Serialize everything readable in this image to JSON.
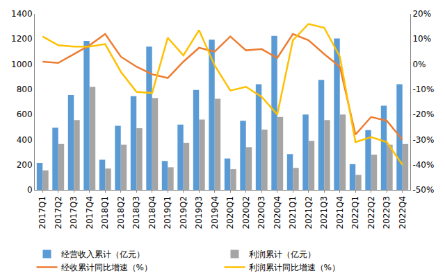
{
  "chart_data": {
    "type": "bar",
    "categories": [
      "2017Q1",
      "2017Q2",
      "2017Q3",
      "2017Q4",
      "2018Q1",
      "2018Q2",
      "2018Q3",
      "2018Q4",
      "2019Q1",
      "2019Q2",
      "2019Q3",
      "2019Q4",
      "2020Q1",
      "2020Q2",
      "2020Q3",
      "2020Q4",
      "2021Q1",
      "2021Q2",
      "2021Q3",
      "2021Q4",
      "2022Q1",
      "2022Q2",
      "2022Q3",
      "2022Q4"
    ],
    "series": [
      {
        "name": "经营收入累计（亿元）",
        "type": "bar",
        "color": "#5B9BD5",
        "values": [
          215,
          495,
          755,
          1185,
          240,
          510,
          745,
          1140,
          230,
          520,
          795,
          1195,
          250,
          550,
          840,
          1225,
          285,
          600,
          875,
          1205,
          205,
          475,
          670,
          840
        ]
      },
      {
        "name": "利润累计（亿元）",
        "type": "bar",
        "color": "#A5A5A5",
        "values": [
          155,
          365,
          555,
          820,
          170,
          360,
          490,
          730,
          180,
          375,
          560,
          725,
          165,
          340,
          480,
          580,
          175,
          390,
          555,
          600,
          120,
          280,
          360,
          365
        ]
      },
      {
        "name": "经收累计同比增速（%）",
        "type": "line",
        "axis": "y2",
        "color": "#ED7D31",
        "values": [
          1,
          0.5,
          4,
          7.5,
          12,
          3,
          -1,
          -4,
          -5.5,
          1,
          6.5,
          5,
          11,
          5.5,
          6,
          2.5,
          12,
          9.5,
          4,
          -1,
          -28,
          -21,
          -22.5,
          -30
        ]
      },
      {
        "name": "利润累计同比增速（%）",
        "type": "line",
        "axis": "y2",
        "color": "#FFC000",
        "values": [
          11,
          7.5,
          7,
          7,
          8,
          -3,
          -11,
          -11.5,
          10.5,
          3.5,
          13.5,
          -0.5,
          -10.5,
          -9,
          -13,
          -20,
          9.5,
          16,
          14.5,
          3,
          -31,
          -29,
          -31,
          -40
        ]
      }
    ],
    "ylim": [
      0,
      1400
    ],
    "yticks": [
      0,
      200,
      400,
      600,
      800,
      1000,
      1200,
      1400
    ],
    "y2lim": [
      -50,
      20
    ],
    "y2ticks": [
      {
        "value": -50,
        "label": "-50%"
      },
      {
        "value": -40,
        "label": "-40%"
      },
      {
        "value": -30,
        "label": "-30%"
      },
      {
        "value": -20,
        "label": "-20%"
      },
      {
        "value": -10,
        "label": "-10%"
      },
      {
        "value": 0,
        "label": "0%"
      },
      {
        "value": 10,
        "label": "10%"
      },
      {
        "value": 20,
        "label": "20%"
      }
    ],
    "grid": false,
    "legend": "bottom"
  }
}
